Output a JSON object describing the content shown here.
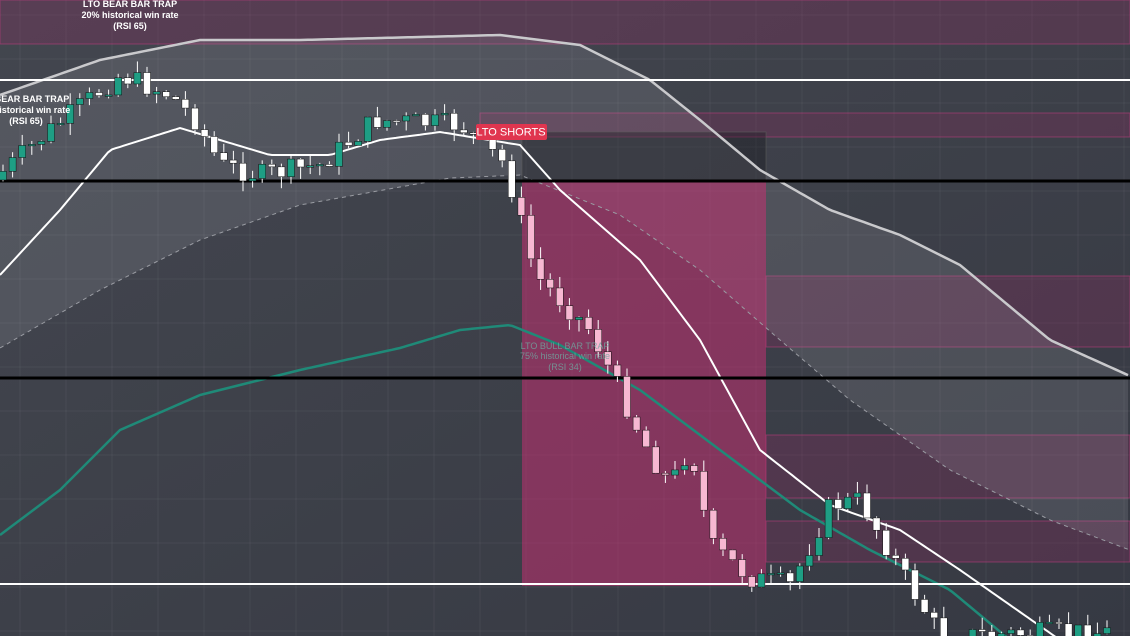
{
  "annotations": {
    "top_trap": {
      "title": "LTO BEAR BAR TRAP",
      "win_rate": "20% historical win rate",
      "rsi": "(RSI 65)"
    },
    "left_trap": {
      "title": "BEAR BAR TRAP",
      "win_rate": "historical win rate",
      "rsi": "(RSI 65)"
    },
    "shorts_label": "LTO SHORTS",
    "bull_trap": {
      "title": "LTO BULL BAR TRAP",
      "win_rate": "75% historical win rate",
      "rsi": "(RSI 34)"
    }
  }
}
